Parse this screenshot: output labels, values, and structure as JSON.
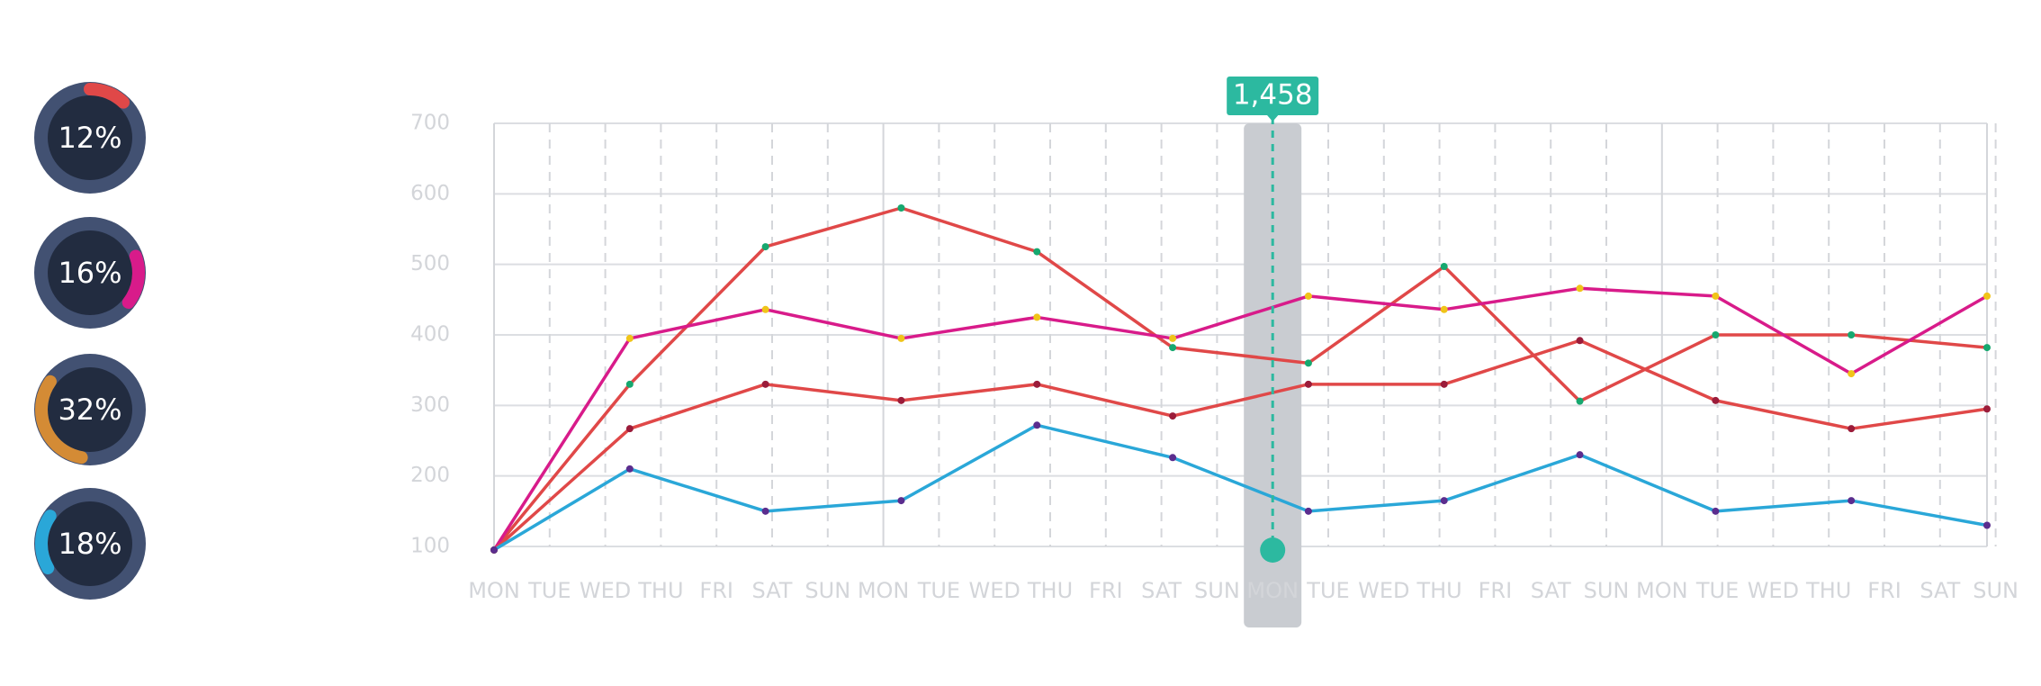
{
  "donuts": [
    {
      "label": "12%",
      "value": 0.12,
      "color": "#e04848"
    },
    {
      "label": "16%",
      "value": 0.16,
      "color": "#d81b8a"
    },
    {
      "label": "32%",
      "value": 0.32,
      "color": "#d48b35"
    },
    {
      "label": "18%",
      "value": 0.18,
      "color": "#2aa7d8"
    }
  ],
  "chart_data": {
    "type": "line",
    "title": "",
    "xlabel": "",
    "ylabel": "",
    "ylim": [
      100,
      700
    ],
    "yticks": [
      "100",
      "200",
      "300",
      "400",
      "500",
      "600",
      "700"
    ],
    "categories": [
      "MON",
      "TUE",
      "WED",
      "THU",
      "FRI",
      "SAT",
      "SUN",
      "MON",
      "TUE",
      "WED",
      "THU",
      "FRI",
      "SAT",
      "SUN",
      "MON",
      "TUE",
      "WED",
      "THU",
      "FRI",
      "SAT",
      "SUN",
      "MON",
      "TUE",
      "WED",
      "THU",
      "FRI",
      "SAT",
      "SUN"
    ],
    "grid": true,
    "legend": "none",
    "series": [
      {
        "color": "#e04848",
        "marker": "#16a86f",
        "points": [
          [
            0,
            95
          ],
          [
            2.5,
            330
          ],
          [
            5,
            525
          ],
          [
            7.5,
            580
          ],
          [
            10,
            518
          ],
          [
            12.5,
            382
          ],
          [
            15,
            360
          ],
          [
            17.5,
            497
          ],
          [
            20,
            306
          ],
          [
            22.5,
            400
          ],
          [
            25,
            400
          ],
          [
            27.5,
            382
          ]
        ]
      },
      {
        "color": "#d81b8a",
        "marker": "#f0c419",
        "points": [
          [
            0,
            95
          ],
          [
            2.5,
            395
          ],
          [
            5,
            436
          ],
          [
            7.5,
            395
          ],
          [
            10,
            425
          ],
          [
            12.5,
            395
          ],
          [
            15,
            455
          ],
          [
            17.5,
            436
          ],
          [
            20,
            466
          ],
          [
            22.5,
            455
          ],
          [
            25,
            345
          ],
          [
            27.5,
            455
          ]
        ]
      },
      {
        "color": "#e04848",
        "marker": "#9b1c3a",
        "points": [
          [
            0,
            95
          ],
          [
            2.5,
            267
          ],
          [
            5,
            330
          ],
          [
            7.5,
            307
          ],
          [
            10,
            330
          ],
          [
            12.5,
            285
          ],
          [
            15,
            330
          ],
          [
            17.5,
            330
          ],
          [
            20,
            392
          ],
          [
            22.5,
            307
          ],
          [
            25,
            267
          ],
          [
            27.5,
            295
          ]
        ]
      },
      {
        "color": "#2aa7d8",
        "marker": "#5b2d8e",
        "points": [
          [
            0,
            95
          ],
          [
            2.5,
            210
          ],
          [
            5,
            150
          ],
          [
            7.5,
            165
          ],
          [
            10,
            272
          ],
          [
            12.5,
            226
          ],
          [
            15,
            150
          ],
          [
            17.5,
            165
          ],
          [
            20,
            230
          ],
          [
            22.5,
            150
          ],
          [
            25,
            165
          ],
          [
            27.5,
            130
          ]
        ]
      }
    ],
    "highlight": {
      "index": 14,
      "value": 100,
      "label": "1,458",
      "color": "#2cb9a0"
    }
  }
}
